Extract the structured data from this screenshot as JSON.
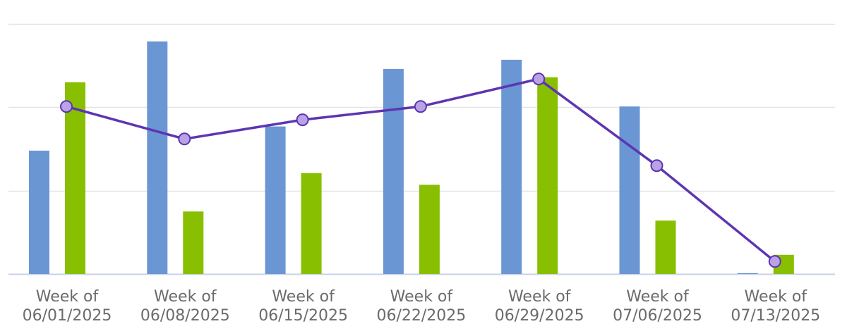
{
  "chart_data": {
    "type": "bar",
    "categories": [
      [
        "Week of",
        "06/01/2025"
      ],
      [
        "Week of",
        "06/08/2025"
      ],
      [
        "Week of",
        "06/15/2025"
      ],
      [
        "Week of",
        "06/22/2025"
      ],
      [
        "Week of",
        "06/29/2025"
      ],
      [
        "Week of",
        "07/06/2025"
      ],
      [
        "Week of",
        "07/13/2025"
      ]
    ],
    "ylim": [
      0,
      3
    ],
    "grid": true,
    "legend": "none",
    "series": [
      {
        "kind": "bar",
        "color": "#6a96d4",
        "values": [
          1.48,
          2.79,
          1.77,
          2.46,
          2.57,
          2.01,
          0.01
        ]
      },
      {
        "kind": "bar",
        "color": "#88bf00",
        "values": [
          2.3,
          0.75,
          1.21,
          1.07,
          2.36,
          0.64,
          0.23
        ]
      },
      {
        "kind": "line",
        "color": "#5e35b1",
        "marker_color": "#b9a3e6",
        "values": [
          2.01,
          1.62,
          1.85,
          2.01,
          2.34,
          1.3,
          0.15
        ]
      }
    ]
  }
}
